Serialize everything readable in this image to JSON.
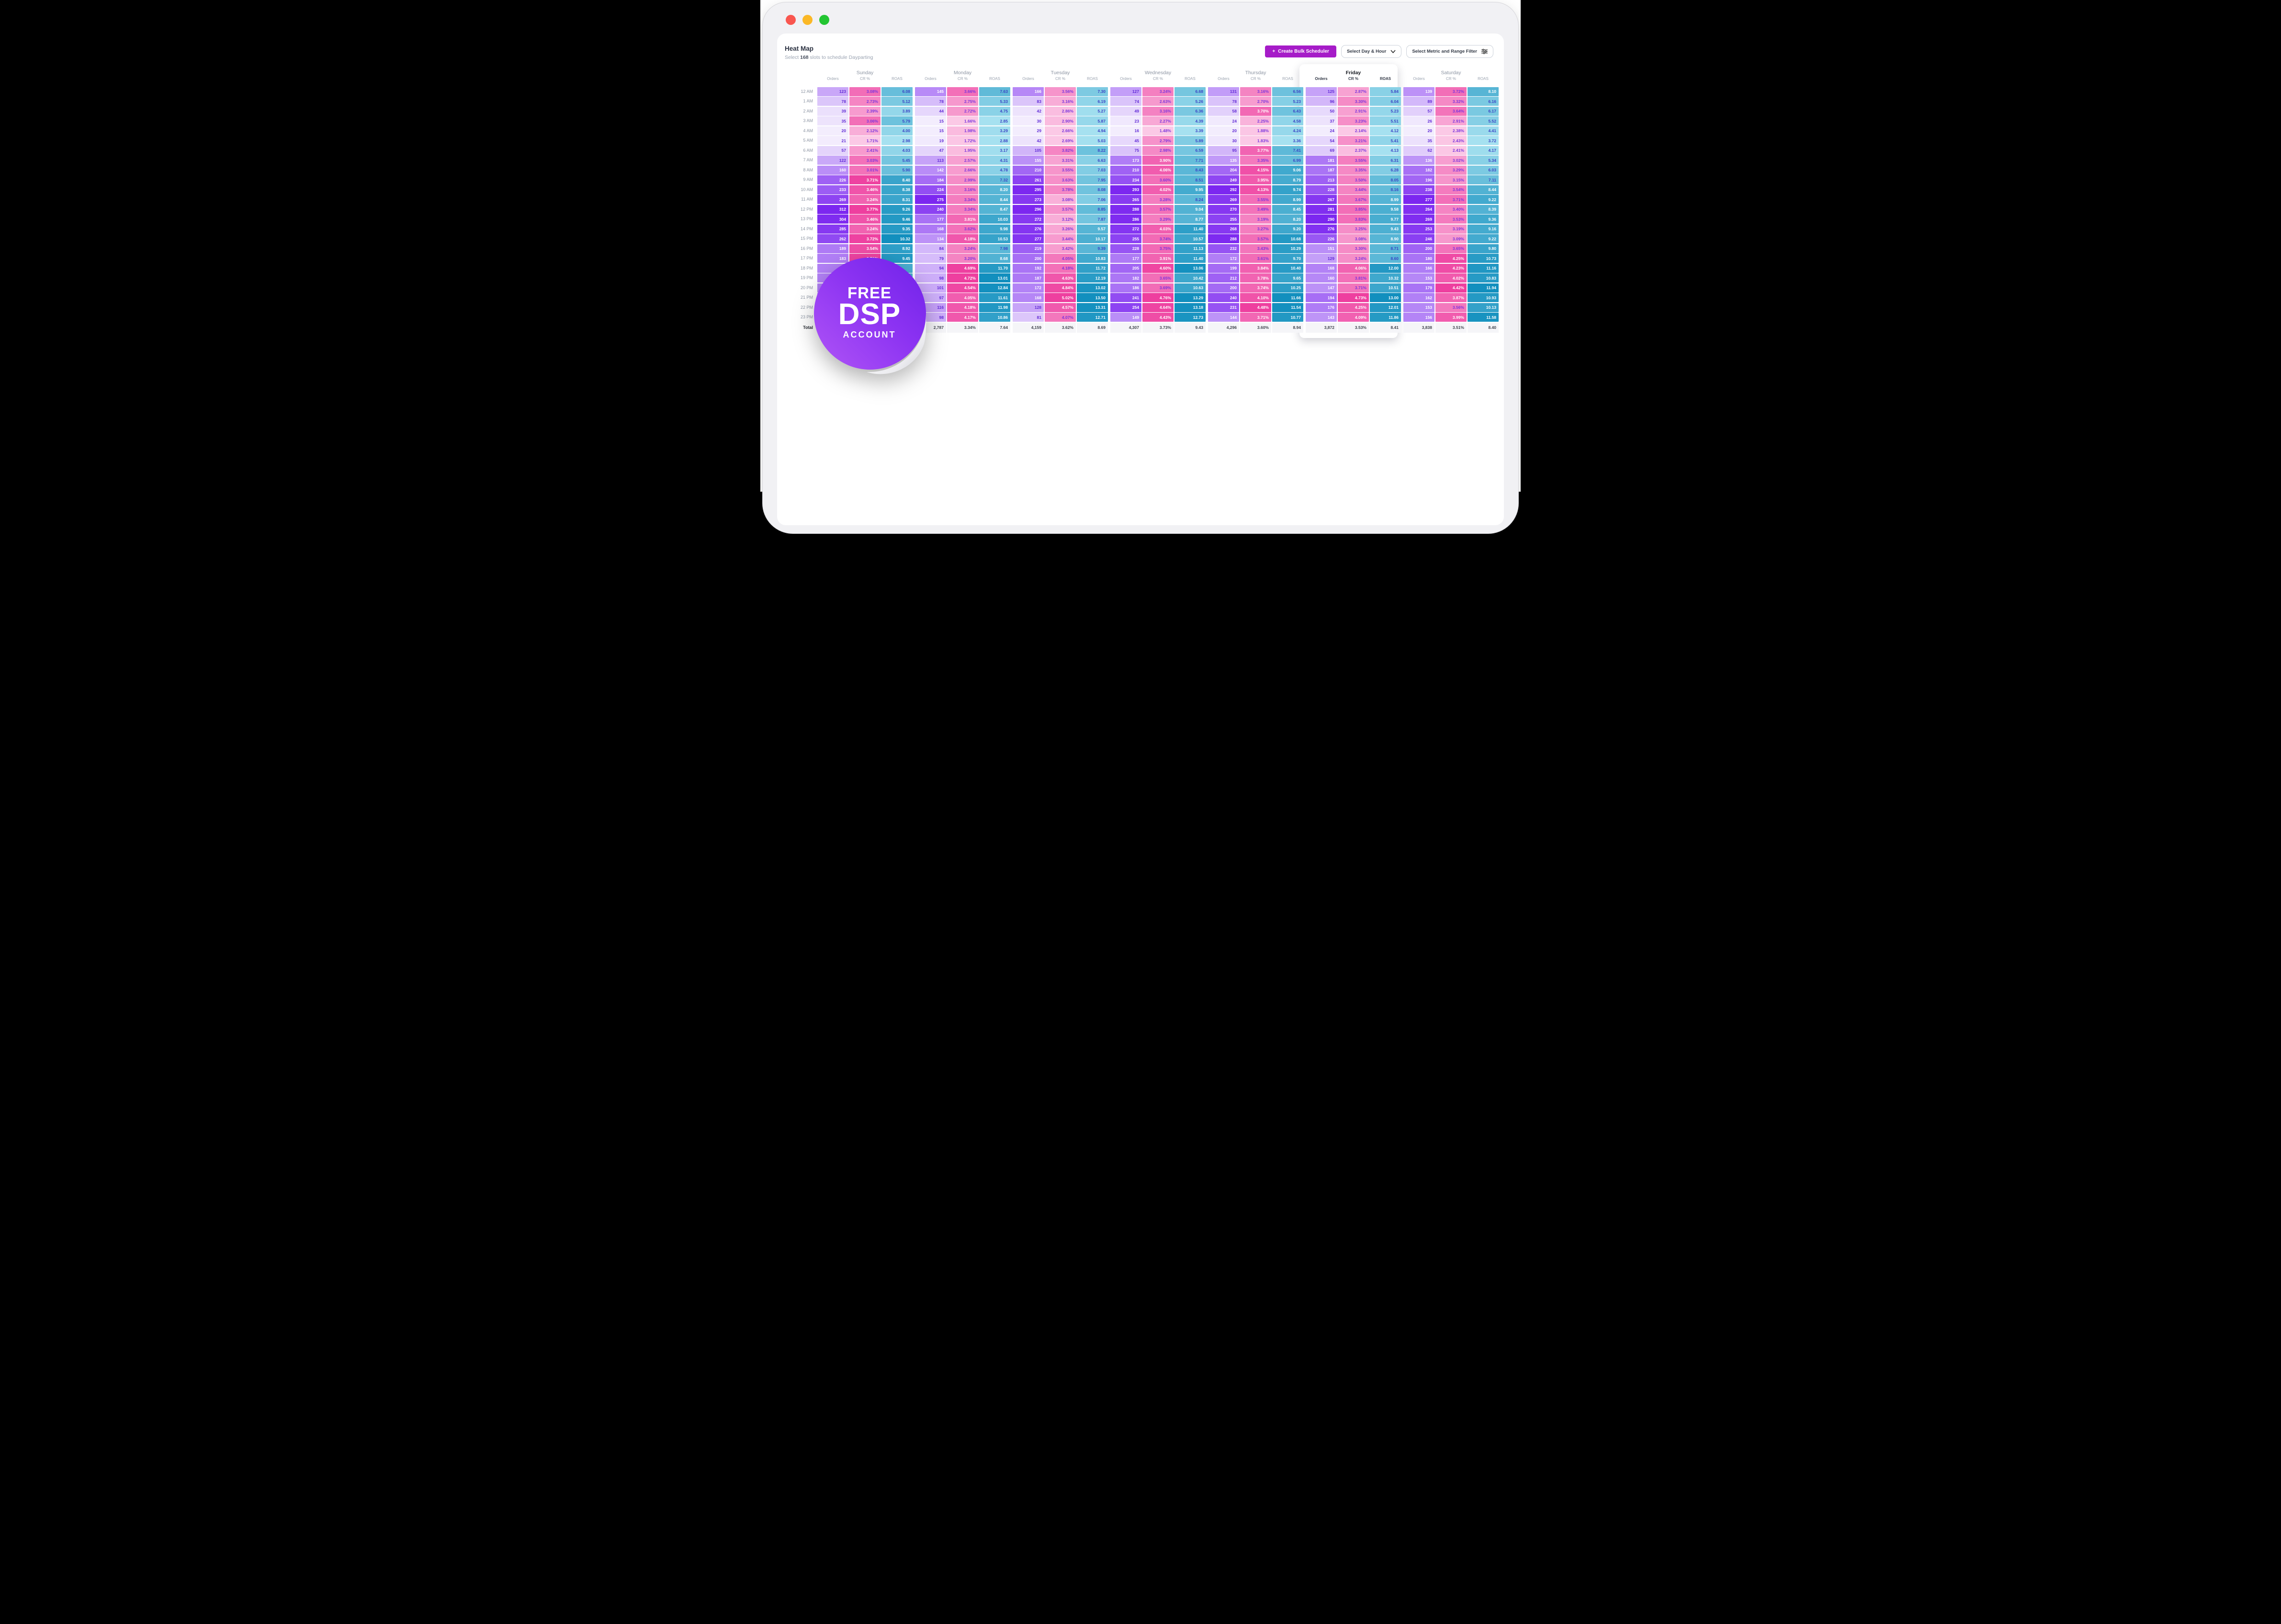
{
  "window": {
    "traffic_lights": [
      "close",
      "minimize",
      "zoom"
    ]
  },
  "header": {
    "title": "Heat Map",
    "subtitle_prefix": "Select ",
    "subtitle_slots": "168",
    "subtitle_suffix": " slots to schedule Dayparting"
  },
  "controls": {
    "create_button": "Create Bulk Scheduler",
    "create_button_plus": "+",
    "day_hour_dropdown": "Select Day & Hour",
    "metric_filter_dropdown": "Select Metric and Range Filter"
  },
  "badge": {
    "line1": "FREE",
    "line2": "DSP",
    "line3": "ACCOUNT"
  },
  "colors": {
    "accent_purple": "#a61cc8",
    "orders_scale_light": "#f3edfd",
    "orders_scale_dark": "#7c27f0",
    "cr_scale_light": "#fbc9e6",
    "cr_scale_dark": "#ee3f9f",
    "roas_scale_light": "#a6e1f0",
    "roas_scale_dark": "#128fbe"
  },
  "table": {
    "metrics": [
      "Orders",
      "CR %",
      "ROAS"
    ],
    "total_label": "Total",
    "hours": [
      "12 AM",
      "1 AM",
      "2 AM",
      "3 AM",
      "4 AM",
      "5 AM",
      "6 AM",
      "7 AM",
      "8 AM",
      "9 AM",
      "10 AM",
      "11 AM",
      "12 PM",
      "13 PM",
      "14 PM",
      "15 PM",
      "16 PM",
      "17 PM",
      "18 PM",
      "19 PM",
      "20 PM",
      "21 PM",
      "22 PM",
      "23 PM"
    ],
    "days": [
      {
        "name": "Sunday",
        "highlight": false,
        "orders": [
          123,
          78,
          39,
          35,
          20,
          21,
          57,
          122,
          160,
          226,
          233,
          269,
          312,
          304,
          285,
          262,
          189,
          183,
          null,
          null,
          null,
          null,
          null,
          null
        ],
        "cr": [
          3.08,
          2.73,
          2.39,
          3.06,
          2.12,
          1.71,
          2.41,
          3.03,
          3.01,
          3.71,
          3.46,
          3.24,
          3.77,
          3.46,
          3.24,
          3.72,
          3.54,
          3.71,
          null,
          null,
          null,
          null,
          null,
          null
        ],
        "roas": [
          6.08,
          5.12,
          3.89,
          5.79,
          4.0,
          2.98,
          4.03,
          5.45,
          5.9,
          8.4,
          8.38,
          8.31,
          9.26,
          9.46,
          9.35,
          10.32,
          8.92,
          9.45,
          null,
          null,
          null,
          null,
          null,
          null
        ],
        "totals": [
          "",
          "",
          ""
        ]
      },
      {
        "name": "Monday",
        "highlight": false,
        "orders": [
          145,
          78,
          44,
          15,
          15,
          19,
          47,
          113,
          142,
          184,
          224,
          275,
          240,
          177,
          168,
          134,
          84,
          79,
          94,
          98,
          101,
          97,
          116,
          98
        ],
        "cr": [
          3.66,
          2.75,
          2.72,
          1.66,
          1.98,
          1.72,
          1.95,
          2.57,
          2.66,
          2.99,
          3.16,
          3.34,
          3.34,
          3.81,
          3.62,
          4.18,
          3.24,
          3.2,
          4.69,
          4.72,
          4.54,
          4.05,
          4.18,
          4.17
        ],
        "roas": [
          7.63,
          5.33,
          4.75,
          2.85,
          3.29,
          2.88,
          3.17,
          4.31,
          4.78,
          7.32,
          8.2,
          8.44,
          8.47,
          10.03,
          9.98,
          10.53,
          7.98,
          8.68,
          11.7,
          13.01,
          12.84,
          11.61,
          11.98,
          10.86
        ],
        "totals": [
          "2,787",
          "3.34%",
          "7.64"
        ]
      },
      {
        "name": "Tuesday",
        "highlight": false,
        "orders": [
          166,
          83,
          42,
          30,
          29,
          42,
          105,
          155,
          210,
          261,
          295,
          273,
          296,
          272,
          276,
          277,
          219,
          200,
          192,
          187,
          172,
          168,
          128,
          81
        ],
        "cr": [
          3.56,
          3.16,
          2.86,
          2.9,
          2.66,
          2.69,
          3.82,
          3.31,
          3.55,
          3.63,
          3.78,
          3.08,
          3.57,
          3.12,
          3.26,
          3.44,
          3.42,
          4.05,
          4.18,
          4.63,
          4.84,
          5.02,
          4.57,
          4.07
        ],
        "roas": [
          7.3,
          6.19,
          5.27,
          5.87,
          4.94,
          5.03,
          8.22,
          6.63,
          7.03,
          7.95,
          8.08,
          7.06,
          8.85,
          7.87,
          9.57,
          10.17,
          9.39,
          10.83,
          11.72,
          12.19,
          13.02,
          13.5,
          13.31,
          12.71
        ],
        "totals": [
          "4,159",
          "3.62%",
          "8.69"
        ]
      },
      {
        "name": "Wednesday",
        "highlight": false,
        "orders": [
          127,
          74,
          49,
          23,
          16,
          45,
          75,
          173,
          210,
          234,
          293,
          265,
          288,
          286,
          272,
          255,
          228,
          177,
          205,
          182,
          186,
          241,
          254,
          149
        ],
        "cr": [
          3.24,
          2.63,
          3.16,
          2.27,
          1.48,
          2.79,
          2.98,
          3.9,
          4.06,
          3.6,
          4.02,
          3.28,
          3.57,
          3.29,
          4.03,
          3.74,
          3.75,
          3.91,
          4.6,
          3.65,
          3.69,
          4.76,
          4.64,
          4.43
        ],
        "roas": [
          6.68,
          5.26,
          6.36,
          4.39,
          3.39,
          5.89,
          6.59,
          7.71,
          8.43,
          8.51,
          9.95,
          8.24,
          9.04,
          8.77,
          11.4,
          10.57,
          11.13,
          11.4,
          13.06,
          10.42,
          10.63,
          13.29,
          13.18,
          12.73
        ],
        "totals": [
          "4,307",
          "3.73%",
          "9.43"
        ]
      },
      {
        "name": "Thursday",
        "highlight": false,
        "orders": [
          131,
          78,
          58,
          24,
          20,
          30,
          95,
          135,
          204,
          249,
          292,
          269,
          270,
          255,
          268,
          288,
          232,
          172,
          199,
          212,
          200,
          240,
          231,
          144
        ],
        "cr": [
          3.16,
          2.7,
          3.7,
          2.25,
          1.88,
          1.83,
          3.77,
          3.35,
          4.15,
          3.95,
          4.13,
          3.55,
          3.49,
          3.19,
          3.27,
          3.57,
          3.43,
          3.61,
          3.84,
          3.78,
          3.74,
          4.1,
          4.48,
          3.71
        ],
        "roas": [
          6.56,
          5.23,
          6.43,
          4.58,
          4.24,
          3.36,
          7.41,
          6.99,
          9.06,
          8.79,
          9.74,
          8.99,
          8.45,
          8.2,
          9.2,
          10.68,
          10.29,
          9.7,
          10.4,
          9.65,
          10.25,
          11.66,
          11.54,
          10.77
        ],
        "totals": [
          "4,296",
          "3.60%",
          "8.94"
        ]
      },
      {
        "name": "Friday",
        "highlight": true,
        "orders": [
          125,
          96,
          50,
          37,
          24,
          54,
          69,
          181,
          187,
          213,
          228,
          267,
          281,
          290,
          276,
          226,
          151,
          129,
          168,
          160,
          147,
          194,
          176,
          143
        ],
        "cr": [
          2.87,
          3.3,
          2.91,
          3.23,
          2.14,
          3.21,
          2.37,
          3.55,
          3.35,
          3.5,
          3.44,
          3.67,
          3.85,
          3.83,
          3.25,
          3.08,
          3.3,
          3.24,
          4.06,
          3.81,
          3.71,
          4.73,
          4.25,
          4.09
        ],
        "roas": [
          5.84,
          6.04,
          5.23,
          5.51,
          4.12,
          5.41,
          4.13,
          6.31,
          6.28,
          8.05,
          8.16,
          8.99,
          9.58,
          9.77,
          9.43,
          8.9,
          8.71,
          8.6,
          12.0,
          10.32,
          10.51,
          13.0,
          12.01,
          11.86
        ],
        "totals": [
          "3,872",
          "3.53%",
          "8.41"
        ]
      },
      {
        "name": "Saturday",
        "highlight": false,
        "orders": [
          139,
          89,
          57,
          26,
          20,
          35,
          62,
          136,
          182,
          196,
          238,
          277,
          264,
          269,
          253,
          246,
          200,
          180,
          166,
          153,
          179,
          162,
          153,
          156
        ],
        "cr": [
          3.72,
          3.32,
          3.64,
          2.91,
          2.38,
          2.43,
          2.41,
          3.02,
          3.29,
          3.15,
          3.54,
          3.71,
          3.4,
          3.53,
          3.19,
          3.09,
          3.65,
          4.25,
          4.23,
          4.02,
          4.42,
          3.87,
          3.56,
          3.99
        ],
        "roas": [
          8.1,
          6.16,
          6.17,
          5.52,
          4.41,
          3.72,
          4.17,
          5.34,
          6.03,
          7.11,
          8.44,
          9.22,
          8.39,
          9.36,
          9.16,
          9.22,
          9.8,
          10.73,
          11.16,
          10.83,
          11.94,
          10.93,
          10.13,
          11.58
        ],
        "totals": [
          "3,838",
          "3.51%",
          "8.40"
        ]
      }
    ]
  }
}
